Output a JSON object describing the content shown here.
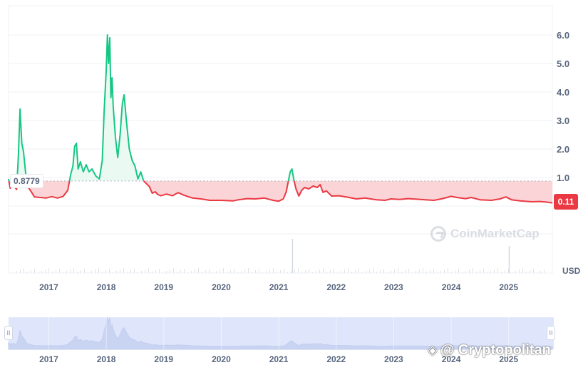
{
  "chart_data": {
    "type": "area",
    "unit": "USD",
    "baseline": 0.8779,
    "baseline_label": "0.8779",
    "current_price_label": "0.11",
    "ylim": [
      0,
      6.9
    ],
    "y_ticks": [
      "1.0",
      "2.0",
      "3.0",
      "4.0",
      "5.0",
      "6.0"
    ],
    "y_tick_values": [
      1,
      2,
      3,
      4,
      5,
      6
    ],
    "x_ticks": [
      "2017",
      "2018",
      "2019",
      "2020",
      "2021",
      "2022",
      "2023",
      "2024",
      "2025"
    ],
    "xlim": [
      2016.3,
      2025.76
    ],
    "colors": {
      "above": "#16c784",
      "below": "#ea3943",
      "above_fill": "#e8f9f2",
      "below_fill": "#f9c9cc",
      "nav_fill": "#dfe6fb",
      "nav_line": "#c3cdee"
    },
    "series": [
      {
        "values": [
          [
            2016.3,
            0.95
          ],
          [
            2016.33,
            0.62
          ],
          [
            2016.36,
            0.74
          ],
          [
            2016.4,
            0.68
          ],
          [
            2016.44,
            0.58
          ],
          [
            2016.47,
            1.7
          ],
          [
            2016.5,
            3.4
          ],
          [
            2016.53,
            2.2
          ],
          [
            2016.56,
            1.9
          ],
          [
            2016.59,
            1.3
          ],
          [
            2016.62,
            0.72
          ],
          [
            2016.68,
            0.55
          ],
          [
            2016.75,
            0.32
          ],
          [
            2016.85,
            0.3
          ],
          [
            2016.95,
            0.28
          ],
          [
            2017.05,
            0.33
          ],
          [
            2017.15,
            0.28
          ],
          [
            2017.25,
            0.34
          ],
          [
            2017.33,
            0.55
          ],
          [
            2017.38,
            1.1
          ],
          [
            2017.42,
            1.4
          ],
          [
            2017.45,
            2.1
          ],
          [
            2017.48,
            2.2
          ],
          [
            2017.51,
            1.3
          ],
          [
            2017.55,
            1.55
          ],
          [
            2017.6,
            1.2
          ],
          [
            2017.65,
            1.45
          ],
          [
            2017.7,
            1.2
          ],
          [
            2017.75,
            1.3
          ],
          [
            2017.82,
            1.05
          ],
          [
            2017.88,
            0.95
          ],
          [
            2017.93,
            1.6
          ],
          [
            2017.96,
            3.2
          ],
          [
            2018.0,
            4.8
          ],
          [
            2018.02,
            6.0
          ],
          [
            2018.04,
            5.0
          ],
          [
            2018.06,
            5.9
          ],
          [
            2018.08,
            3.8
          ],
          [
            2018.1,
            4.5
          ],
          [
            2018.12,
            3.5
          ],
          [
            2018.16,
            2.4
          ],
          [
            2018.2,
            1.7
          ],
          [
            2018.24,
            2.5
          ],
          [
            2018.28,
            3.6
          ],
          [
            2018.31,
            3.9
          ],
          [
            2018.35,
            3.0
          ],
          [
            2018.4,
            2.0
          ],
          [
            2018.45,
            1.6
          ],
          [
            2018.5,
            1.4
          ],
          [
            2018.55,
            0.95
          ],
          [
            2018.6,
            1.2
          ],
          [
            2018.65,
            0.88
          ],
          [
            2018.7,
            0.78
          ],
          [
            2018.75,
            0.68
          ],
          [
            2018.8,
            0.45
          ],
          [
            2018.85,
            0.5
          ],
          [
            2018.9,
            0.4
          ],
          [
            2018.95,
            0.36
          ],
          [
            2019.05,
            0.42
          ],
          [
            2019.15,
            0.36
          ],
          [
            2019.25,
            0.47
          ],
          [
            2019.35,
            0.38
          ],
          [
            2019.5,
            0.28
          ],
          [
            2019.65,
            0.25
          ],
          [
            2019.8,
            0.2
          ],
          [
            2020.0,
            0.2
          ],
          [
            2020.2,
            0.18
          ],
          [
            2020.3,
            0.22
          ],
          [
            2020.45,
            0.26
          ],
          [
            2020.6,
            0.25
          ],
          [
            2020.75,
            0.28
          ],
          [
            2020.9,
            0.2
          ],
          [
            2021.0,
            0.17
          ],
          [
            2021.08,
            0.25
          ],
          [
            2021.13,
            0.5
          ],
          [
            2021.17,
            0.9
          ],
          [
            2021.2,
            1.2
          ],
          [
            2021.23,
            1.3
          ],
          [
            2021.26,
            0.95
          ],
          [
            2021.3,
            0.6
          ],
          [
            2021.35,
            0.35
          ],
          [
            2021.4,
            0.55
          ],
          [
            2021.45,
            0.65
          ],
          [
            2021.52,
            0.6
          ],
          [
            2021.6,
            0.7
          ],
          [
            2021.67,
            0.65
          ],
          [
            2021.72,
            0.75
          ],
          [
            2021.77,
            0.48
          ],
          [
            2021.83,
            0.53
          ],
          [
            2021.92,
            0.35
          ],
          [
            2022.05,
            0.36
          ],
          [
            2022.2,
            0.31
          ],
          [
            2022.35,
            0.25
          ],
          [
            2022.5,
            0.28
          ],
          [
            2022.7,
            0.22
          ],
          [
            2022.85,
            0.2
          ],
          [
            2022.95,
            0.25
          ],
          [
            2023.1,
            0.23
          ],
          [
            2023.25,
            0.26
          ],
          [
            2023.4,
            0.24
          ],
          [
            2023.55,
            0.22
          ],
          [
            2023.7,
            0.2
          ],
          [
            2023.85,
            0.26
          ],
          [
            2024.0,
            0.34
          ],
          [
            2024.1,
            0.3
          ],
          [
            2024.25,
            0.26
          ],
          [
            2024.35,
            0.3
          ],
          [
            2024.5,
            0.22
          ],
          [
            2024.7,
            0.2
          ],
          [
            2024.85,
            0.25
          ],
          [
            2024.95,
            0.32
          ],
          [
            2025.05,
            0.22
          ],
          [
            2025.2,
            0.18
          ],
          [
            2025.4,
            0.15
          ],
          [
            2025.55,
            0.16
          ],
          [
            2025.65,
            0.14
          ],
          [
            2025.76,
            0.11
          ]
        ]
      }
    ]
  },
  "watermark": {
    "brand": "CoinMarketCap",
    "icon": "coinmarketcap-logo-icon"
  },
  "credit": {
    "text": "@ Cryptopolitan",
    "icon": "cryptopolitan-logo-icon"
  },
  "navigator": {
    "x_ticks": [
      "2017",
      "2018",
      "2019",
      "2020",
      "2021",
      "2022",
      "2023",
      "2024",
      "2025"
    ],
    "left_handle": "II",
    "right_handle": "II"
  }
}
